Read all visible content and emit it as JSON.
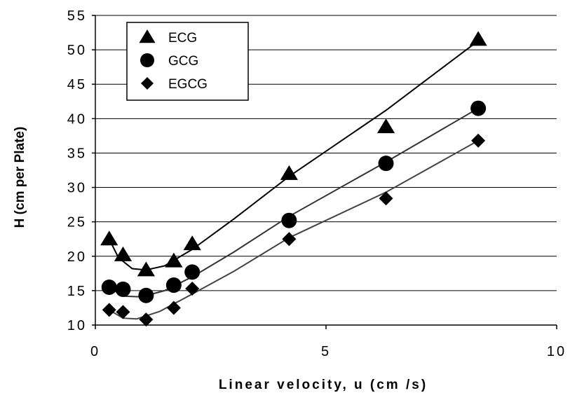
{
  "chart_data": {
    "type": "scatter",
    "title": "",
    "xlabel": "Linear velocity, u (cm /s)",
    "ylabel": "H (cm per Plate)",
    "xlim": [
      0,
      10
    ],
    "ylim": [
      10,
      55
    ],
    "x_ticks": [
      0,
      5,
      10
    ],
    "y_ticks": [
      10,
      15,
      20,
      25,
      30,
      35,
      40,
      45,
      50,
      55
    ],
    "x_tick_labels": [
      "0",
      "5",
      "10"
    ],
    "y_tick_labels": [
      "10",
      "15",
      "20",
      "25",
      "30",
      "35",
      "40",
      "45",
      "50",
      "55"
    ],
    "grid": "horizontal",
    "legend_position": "top-left",
    "series": [
      {
        "name": "ECG",
        "marker": "triangle",
        "color": "#000000",
        "points": [
          [
            0.3,
            22.5
          ],
          [
            0.6,
            20.2
          ],
          [
            1.1,
            18.0
          ],
          [
            1.7,
            19.3
          ],
          [
            2.1,
            21.8
          ],
          [
            4.2,
            32.0
          ],
          [
            6.3,
            38.8
          ],
          [
            8.3,
            51.5
          ]
        ],
        "fit": [
          [
            0.3,
            22.5
          ],
          [
            0.5,
            19.8
          ],
          [
            0.8,
            18.2
          ],
          [
            1.1,
            18.0
          ],
          [
            1.5,
            18.6
          ],
          [
            2.1,
            21.0
          ],
          [
            3.0,
            25.4
          ],
          [
            4.2,
            31.6
          ],
          [
            6.3,
            41.2
          ],
          [
            8.3,
            51.3
          ]
        ]
      },
      {
        "name": "GCG",
        "marker": "circle",
        "color": "#000000",
        "points": [
          [
            0.3,
            15.5
          ],
          [
            0.6,
            15.2
          ],
          [
            1.1,
            14.3
          ],
          [
            1.7,
            15.8
          ],
          [
            2.1,
            17.7
          ],
          [
            4.2,
            25.2
          ],
          [
            6.3,
            33.5
          ],
          [
            8.3,
            41.5
          ]
        ],
        "fit": [
          [
            0.3,
            15.5
          ],
          [
            0.6,
            14.2
          ],
          [
            1.0,
            14.1
          ],
          [
            1.5,
            15.0
          ],
          [
            2.1,
            17.0
          ],
          [
            3.0,
            20.6
          ],
          [
            4.2,
            25.8
          ],
          [
            6.3,
            33.7
          ],
          [
            8.3,
            41.5
          ]
        ]
      },
      {
        "name": "EGCG",
        "marker": "diamond",
        "color": "#000000",
        "points": [
          [
            0.3,
            12.2
          ],
          [
            0.6,
            11.9
          ],
          [
            1.1,
            10.8
          ],
          [
            1.7,
            12.5
          ],
          [
            2.1,
            15.3
          ],
          [
            4.2,
            22.5
          ],
          [
            6.3,
            28.4
          ],
          [
            8.3,
            36.8
          ]
        ],
        "fit": [
          [
            0.3,
            12.2
          ],
          [
            0.6,
            11.0
          ],
          [
            0.9,
            10.9
          ],
          [
            1.4,
            12.0
          ],
          [
            2.1,
            14.5
          ],
          [
            3.0,
            17.8
          ],
          [
            4.2,
            22.7
          ],
          [
            6.3,
            29.3
          ],
          [
            8.3,
            36.8
          ]
        ]
      }
    ]
  }
}
